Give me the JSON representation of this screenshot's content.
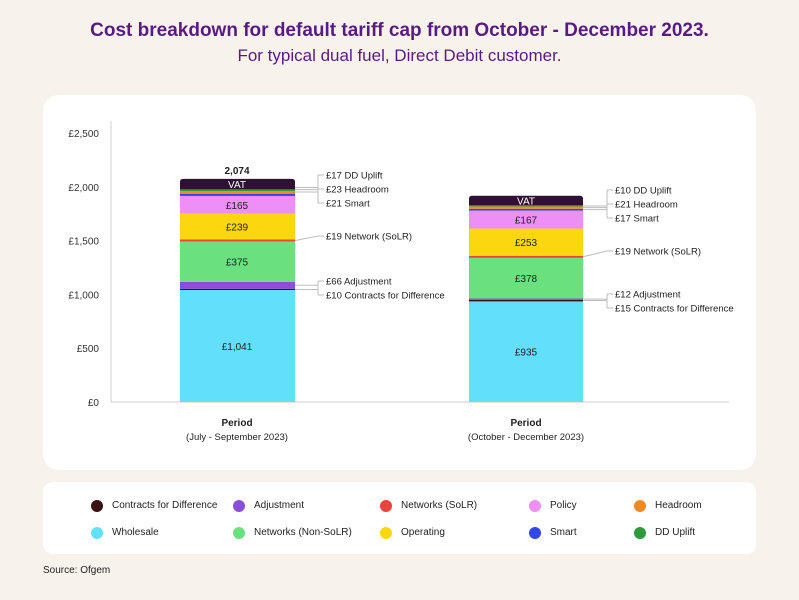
{
  "title": "Cost breakdown for default tariff cap from October - December 2023.",
  "subtitle": "For typical dual fuel, Direct Debit customer.",
  "source": "Source: Ofgem",
  "colors": {
    "wholesale": "#62dffa",
    "adjustment": "#8a4fd6",
    "contracts": "#3a1212",
    "networks_nonsolr": "#6be07e",
    "networks_solr": "#e8453c",
    "operating": "#fcd60f",
    "policy": "#ee8ef7",
    "smart": "#3049e6",
    "headroom": "#f28a24",
    "dd_uplift": "#2f9a3a",
    "vat": "#2e1236"
  },
  "chart_data": {
    "type": "bar",
    "stacked": true,
    "ylim": [
      0,
      2500
    ],
    "yticks": [
      {
        "value": 0,
        "label": "£0"
      },
      {
        "value": 500,
        "label": "£500"
      },
      {
        "value": 1000,
        "label": "£1,000"
      },
      {
        "value": 1500,
        "label": "£1,500"
      },
      {
        "value": 2000,
        "label": "£2,000"
      },
      {
        "value": 2500,
        "label": "£2,500"
      }
    ],
    "bars": [
      {
        "label": "Period",
        "sublabel": "(July - September 2023)",
        "total": 2074,
        "total_label": "2,074",
        "segments": [
          {
            "key": "wholesale",
            "value": 1041,
            "inner_label": "£1,041"
          },
          {
            "key": "contracts",
            "value": 10
          },
          {
            "key": "adjustment",
            "value": 66
          },
          {
            "key": "networks_nonsolr",
            "value": 375,
            "inner_label": "£375"
          },
          {
            "key": "networks_solr",
            "value": 19
          },
          {
            "key": "operating",
            "value": 239,
            "inner_label": "£239"
          },
          {
            "key": "policy",
            "value": 165,
            "inner_label": "£165"
          },
          {
            "key": "smart",
            "value": 21
          },
          {
            "key": "headroom",
            "value": 23
          },
          {
            "key": "dd_uplift",
            "value": 17
          },
          {
            "key": "vat",
            "value": 98,
            "inner_label": "VAT"
          }
        ],
        "callouts": [
          {
            "text": "£17 DD Uplift",
            "target": 1994
          },
          {
            "text": "£23 Headroom",
            "target": 1974
          },
          {
            "text": "£21 Smart",
            "target": 1952
          },
          {
            "text": "£19 Network (SoLR)",
            "target": 1500
          },
          {
            "text": "£66 Adjustment",
            "target": 1085
          },
          {
            "text": "£10 Contracts for Difference",
            "target": 1046
          }
        ]
      },
      {
        "label": "Period",
        "sublabel": "(October - December 2023)",
        "segments": [
          {
            "key": "wholesale",
            "value": 935,
            "inner_label": "£935"
          },
          {
            "key": "contracts",
            "value": 15
          },
          {
            "key": "adjustment",
            "value": 12
          },
          {
            "key": "networks_nonsolr",
            "value": 378,
            "inner_label": "£378"
          },
          {
            "key": "networks_solr",
            "value": 19
          },
          {
            "key": "operating",
            "value": 253,
            "inner_label": "£253"
          },
          {
            "key": "policy",
            "value": 167,
            "inner_label": "£167"
          },
          {
            "key": "smart",
            "value": 17
          },
          {
            "key": "headroom",
            "value": 21
          },
          {
            "key": "dd_uplift",
            "value": 10
          },
          {
            "key": "vat",
            "value": 90,
            "inner_label": "VAT"
          }
        ],
        "callouts": [
          {
            "text": "£10 DD Uplift",
            "target": 1822
          },
          {
            "text": "£21 Headroom",
            "target": 1807
          },
          {
            "text": "£17 Smart",
            "target": 1788
          },
          {
            "text": "£19 Network (SoLR)",
            "target": 1350
          },
          {
            "text": "£12 Adjustment",
            "target": 956
          },
          {
            "text": "£15 Contracts for Difference",
            "target": 943
          }
        ]
      }
    ]
  },
  "legend": [
    {
      "label": "Contracts for Difference",
      "key": "contracts"
    },
    {
      "label": "Adjustment",
      "key": "adjustment"
    },
    {
      "label": "Networks (SoLR)",
      "key": "networks_solr"
    },
    {
      "label": "Policy",
      "key": "policy"
    },
    {
      "label": "Headroom",
      "key": "headroom"
    },
    {
      "label": "Wholesale",
      "key": "wholesale"
    },
    {
      "label": "Networks (Non-SoLR)",
      "key": "networks_nonsolr"
    },
    {
      "label": "Operating",
      "key": "operating"
    },
    {
      "label": "Smart",
      "key": "smart"
    },
    {
      "label": "DD Uplift",
      "key": "dd_uplift"
    }
  ]
}
